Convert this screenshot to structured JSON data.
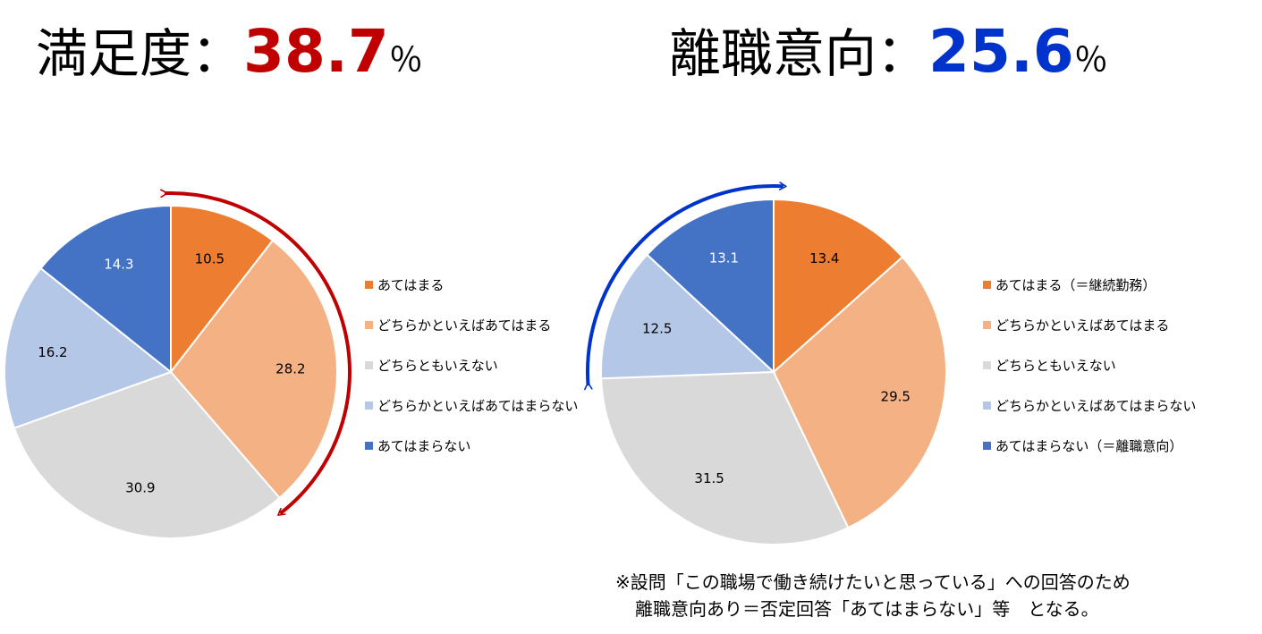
{
  "colors": {
    "orange": "#ed7d31",
    "light_orange": "#f4b183",
    "gray": "#d9d9d9",
    "light_blue": "#b4c7e7",
    "blue": "#4472c4",
    "red_arrow": "#c00000",
    "blue_arrow": "#0033cc"
  },
  "left_title": {
    "label": "満足度：",
    "value": "38.7",
    "unit": "％"
  },
  "right_title": {
    "label": "離職意向：",
    "value": "25.6",
    "unit": "％"
  },
  "chart_data": [
    {
      "type": "pie",
      "title": "満足度：38.7％",
      "legend_placement": "right",
      "categories": [
        "あてはまる",
        "どちらかといえばあてはまる",
        "どちらともいえない",
        "どちらかといえばあてはまらない",
        "あてはまらない"
      ],
      "values": [
        10.5,
        28.2,
        30.9,
        16.2,
        14.3
      ],
      "labels": [
        "10.5",
        "28.2",
        "30.9",
        "16.2",
        "14.3"
      ],
      "colors": [
        "#ed7d31",
        "#f4b183",
        "#d9d9d9",
        "#b4c7e7",
        "#4472c4"
      ]
    },
    {
      "type": "pie",
      "title": "離職意向：25.6％",
      "legend_placement": "right",
      "categories": [
        "あてはまる（＝継続勤務）",
        "どちらかといえばあてはまる",
        "どちらともいえない",
        "どちらかといえばあてはまらない",
        "あてはまらない（＝離職意向）"
      ],
      "values": [
        13.4,
        29.5,
        31.5,
        12.5,
        13.1
      ],
      "labels": [
        "13.4",
        "29.5",
        "31.5",
        "12.5",
        "13.1"
      ],
      "colors": [
        "#ed7d31",
        "#f4b183",
        "#d9d9d9",
        "#b4c7e7",
        "#4472c4"
      ]
    }
  ],
  "note": {
    "line1": "※設問「この職場で働き続けたいと思っている」への回答のため",
    "line2": "離職意向あり＝否定回答「あてはまらない」等　となる。"
  }
}
